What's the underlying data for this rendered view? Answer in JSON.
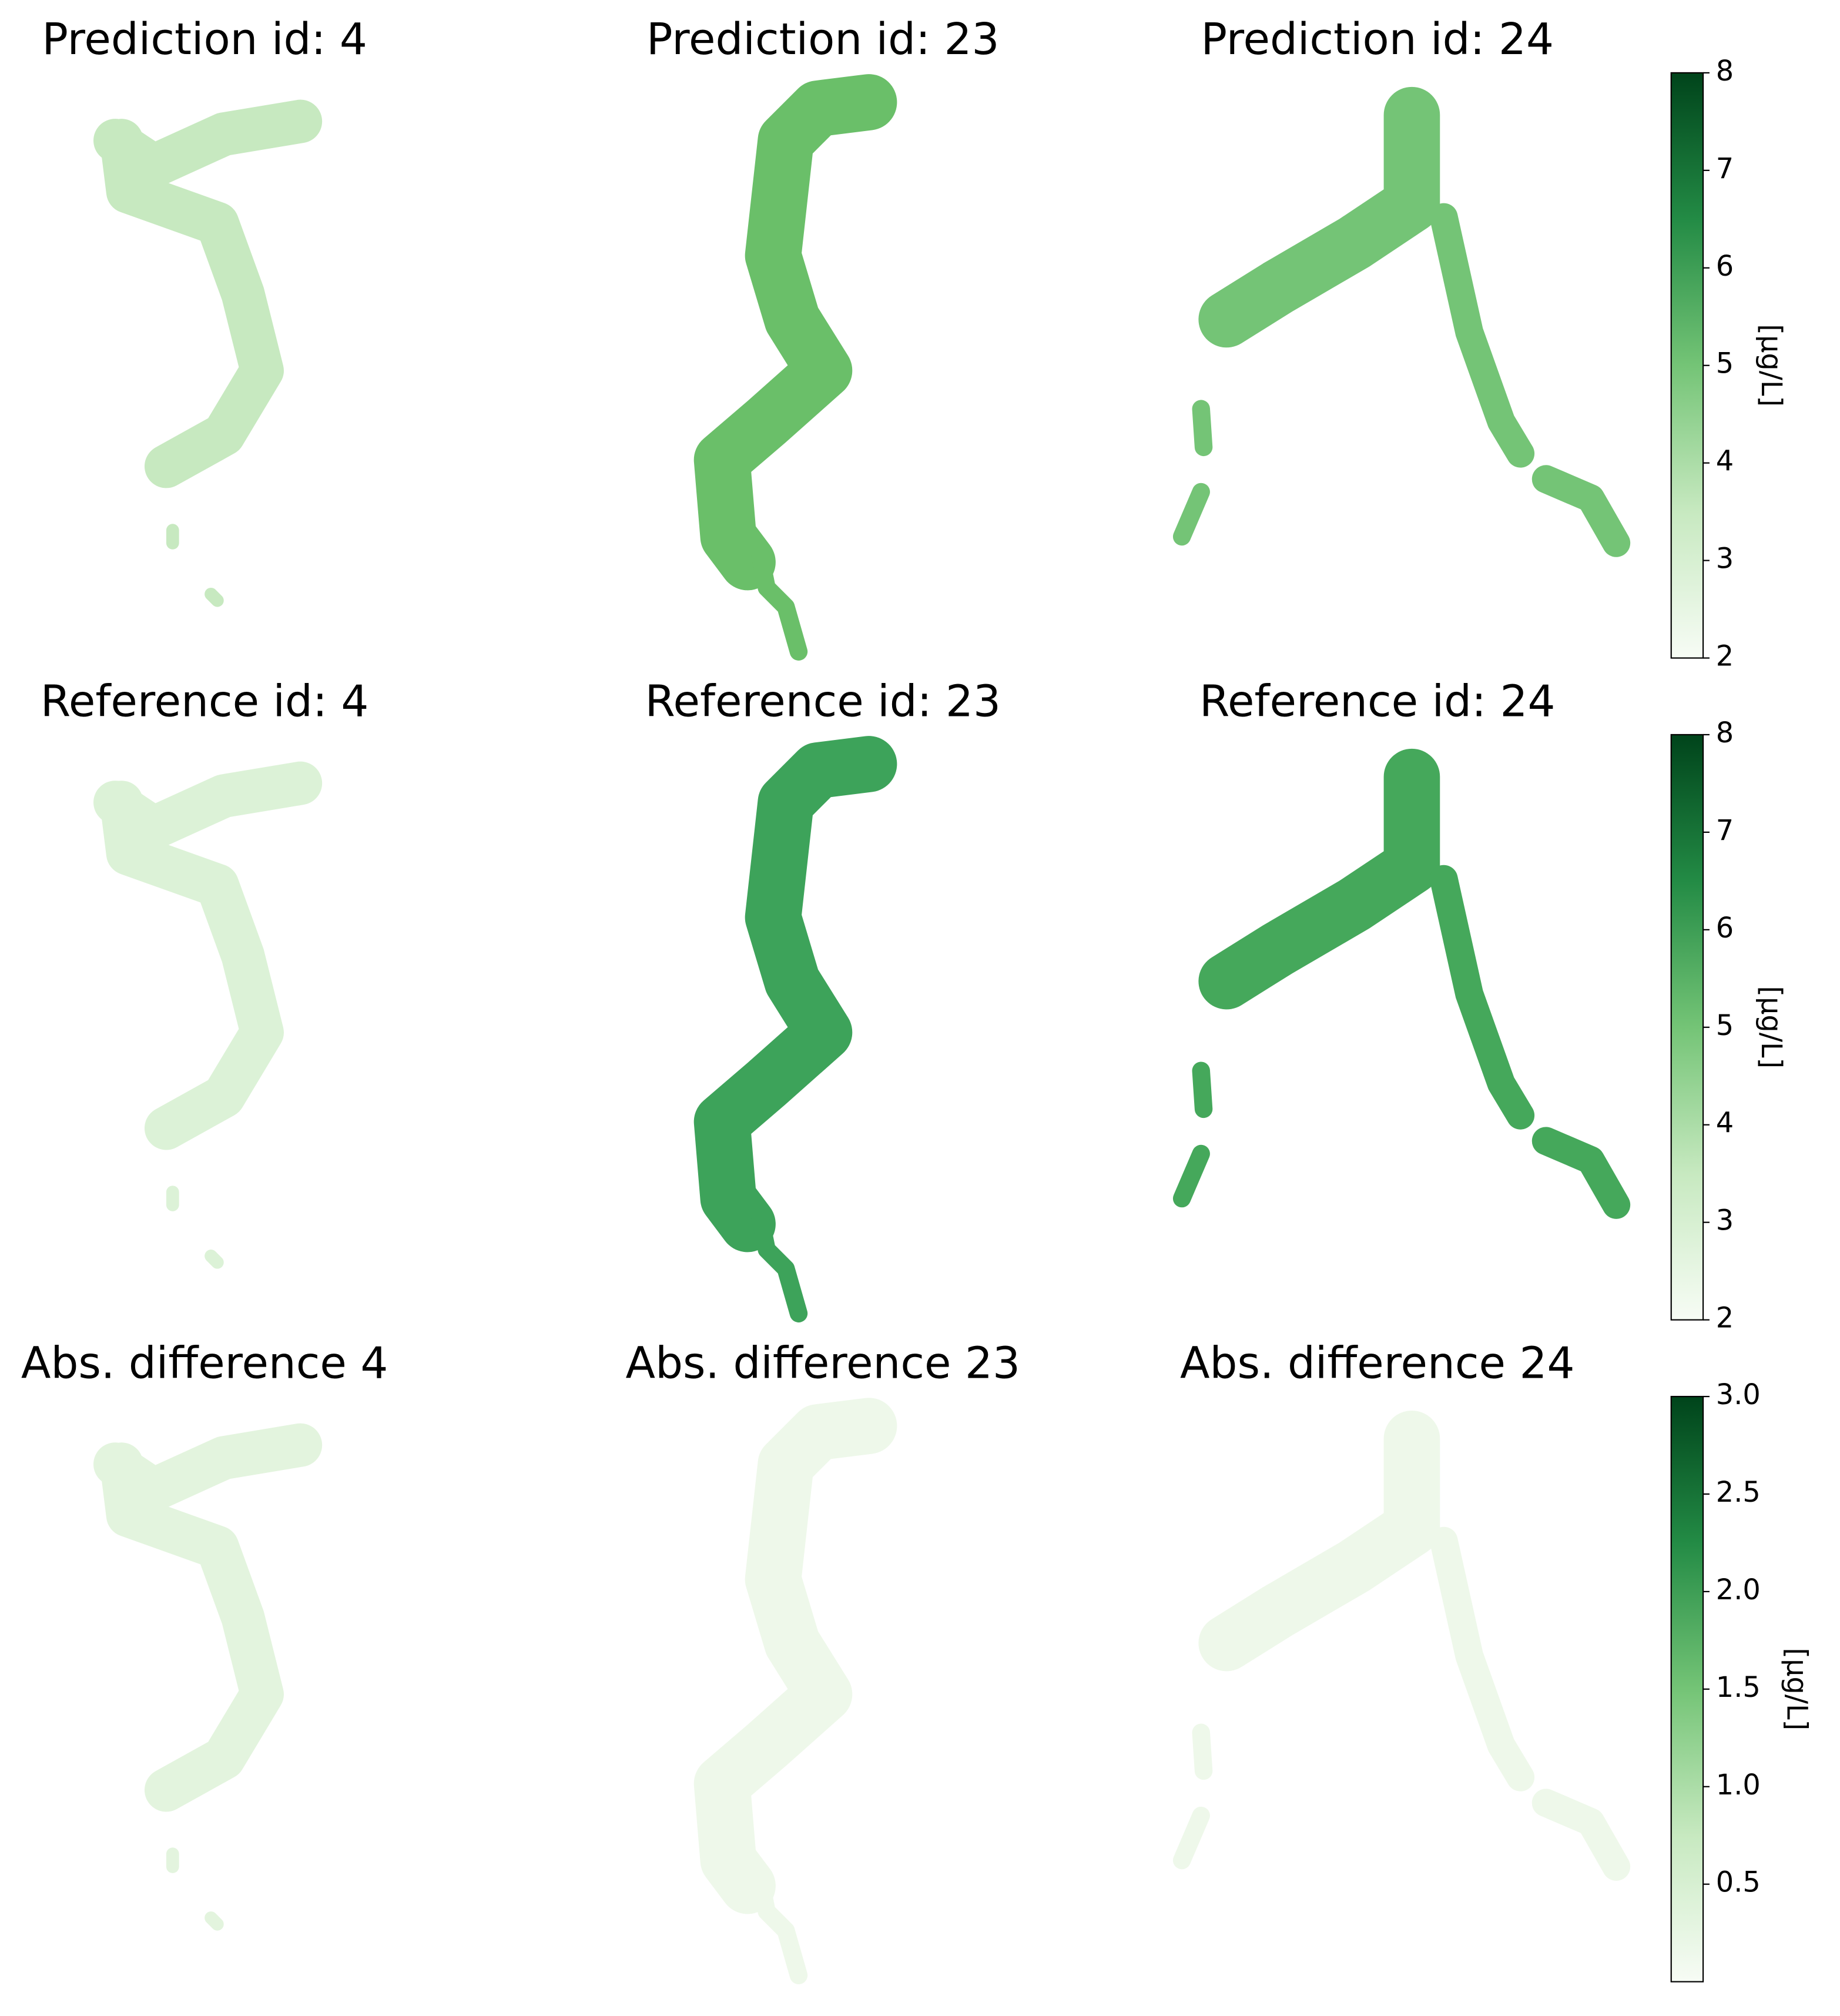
{
  "panels": [
    {
      "title": "Prediction id: 4"
    },
    {
      "title": "Prediction id: 23"
    },
    {
      "title": "Prediction id: 24"
    },
    {
      "title": "Reference id: 4"
    },
    {
      "title": "Reference id: 23"
    },
    {
      "title": "Reference id: 24"
    },
    {
      "title": "Abs. difference 4"
    },
    {
      "title": "Abs. difference 23"
    },
    {
      "title": "Abs. difference 24"
    }
  ],
  "colorbars": [
    {
      "type": "colorbar",
      "label": "[µg/L]",
      "ylim": [
        2,
        8
      ],
      "yticks": [
        2,
        3,
        4,
        5,
        6,
        7,
        8
      ],
      "colors": [
        "#f7fcf5",
        "#c7e9c0",
        "#74c476",
        "#238b45",
        "#00441b"
      ]
    },
    {
      "type": "colorbar",
      "label": "[µg/L]",
      "ylim": [
        2,
        8
      ],
      "yticks": [
        2,
        3,
        4,
        5,
        6,
        7,
        8
      ],
      "colors": [
        "#f7fcf5",
        "#c7e9c0",
        "#74c476",
        "#238b45",
        "#00441b"
      ]
    },
    {
      "type": "colorbar",
      "label": "[µg/L]",
      "ylim": [
        0,
        3
      ],
      "yticks": [
        0.5,
        {
          "value": 1,
          "label": "1.0"
        },
        1.5,
        {
          "value": 2,
          "label": "2.0"
        },
        2.5,
        {
          "value": 3,
          "label": "3.0"
        }
      ],
      "colors": [
        "#f7fcf5",
        "#c7e9c0",
        "#74c476",
        "#238b45",
        "#00441b"
      ]
    }
  ]
}
